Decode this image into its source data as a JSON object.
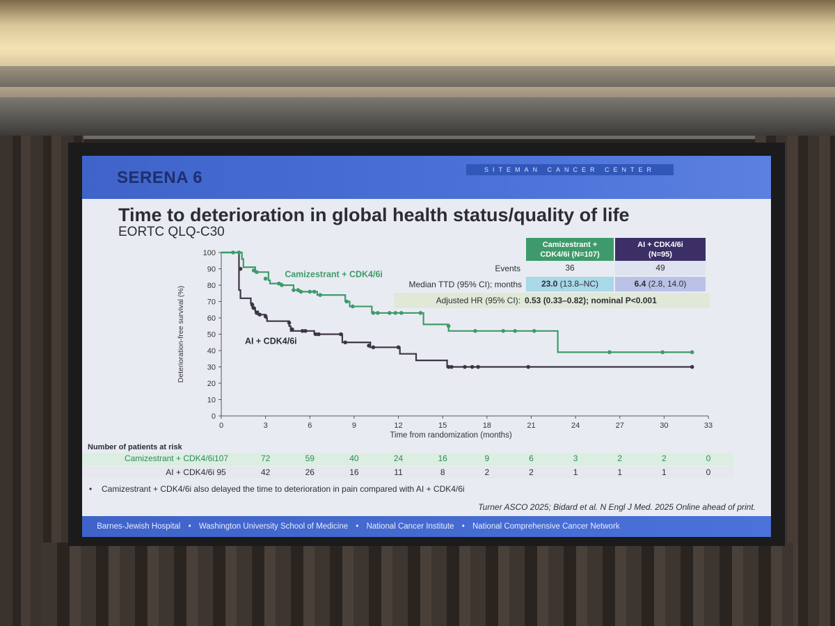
{
  "slide": {
    "banner_title": "SERENA 6",
    "center_tag": "SITEMAN CANCER CENTER",
    "title": "Time to deterioration in global health status/quality of life",
    "subtitle": "EORTC QLQ-C30"
  },
  "table": {
    "header_cam": "Camizestrant + CDK4/6i (N=107)",
    "header_ai": "AI + CDK4/6i (N=95)",
    "events_label": "Events",
    "events_cam": "36",
    "events_ai": "49",
    "median_label": "Median TTD (95% CI); months",
    "median_cam_bold": "23.0",
    "median_cam_ci": "(13.8–NC)",
    "median_ai_bold": "6.4",
    "median_ai_ci": "(2.8, 14.0)",
    "hr_label": "Adjusted HR (95% CI):",
    "hr_value": "0.53 (0.33–0.82); nominal P<0.001"
  },
  "chart_data": {
    "type": "line",
    "title": "",
    "xlabel": "Time from randomization (months)",
    "ylabel": "Deterioration-free survival (%)",
    "xlim": [
      0,
      33
    ],
    "ylim": [
      0,
      100
    ],
    "xticks": [
      0,
      3,
      6,
      9,
      12,
      15,
      18,
      21,
      24,
      27,
      30,
      33
    ],
    "yticks": [
      0,
      10,
      20,
      30,
      40,
      50,
      60,
      70,
      80,
      90,
      100
    ],
    "series": [
      {
        "name": "Camizestrant + CDK4/6i",
        "color": "#3e9a6a",
        "steps": [
          [
            0,
            100
          ],
          [
            1.3,
            100
          ],
          [
            1.4,
            96
          ],
          [
            1.5,
            91
          ],
          [
            2.2,
            91
          ],
          [
            2.3,
            88
          ],
          [
            3.1,
            88
          ],
          [
            3.2,
            83
          ],
          [
            3.3,
            81
          ],
          [
            4.0,
            81
          ],
          [
            4.1,
            80
          ],
          [
            4.8,
            80
          ],
          [
            4.9,
            77
          ],
          [
            5.2,
            77
          ],
          [
            5.3,
            76
          ],
          [
            6.4,
            76
          ],
          [
            6.5,
            74
          ],
          [
            8.3,
            74
          ],
          [
            8.4,
            70
          ],
          [
            8.6,
            70
          ],
          [
            8.7,
            67
          ],
          [
            10.1,
            67
          ],
          [
            10.2,
            63
          ],
          [
            13.6,
            63
          ],
          [
            13.7,
            56
          ],
          [
            15.3,
            56
          ],
          [
            15.4,
            52
          ],
          [
            22.7,
            52
          ],
          [
            22.8,
            39
          ],
          [
            31.9,
            39
          ]
        ],
        "censors": [
          [
            0.8,
            100
          ],
          [
            1.2,
            100
          ],
          [
            2.2,
            89
          ],
          [
            2.4,
            88
          ],
          [
            3.0,
            84
          ],
          [
            3.9,
            81
          ],
          [
            4.1,
            80
          ],
          [
            4.9,
            77
          ],
          [
            5.2,
            77
          ],
          [
            5.4,
            76
          ],
          [
            6.0,
            76
          ],
          [
            6.3,
            76
          ],
          [
            6.7,
            74
          ],
          [
            8.5,
            70
          ],
          [
            8.9,
            67
          ],
          [
            10.3,
            63
          ],
          [
            10.6,
            63
          ],
          [
            11.4,
            63
          ],
          [
            11.8,
            63
          ],
          [
            12.2,
            63
          ],
          [
            13.5,
            63
          ],
          [
            15.4,
            55
          ],
          [
            17.2,
            52
          ],
          [
            19.1,
            52
          ],
          [
            19.9,
            52
          ],
          [
            21.2,
            52
          ],
          [
            26.3,
            39
          ],
          [
            29.9,
            39
          ],
          [
            31.9,
            39
          ]
        ]
      },
      {
        "name": "AI + CDK4/6i",
        "color": "#3d3446",
        "steps": [
          [
            0,
            100
          ],
          [
            1.1,
            100
          ],
          [
            1.2,
            77
          ],
          [
            1.3,
            72
          ],
          [
            1.9,
            72
          ],
          [
            2.0,
            69
          ],
          [
            2.1,
            66
          ],
          [
            2.3,
            64
          ],
          [
            2.5,
            62
          ],
          [
            2.9,
            62
          ],
          [
            3.0,
            60
          ],
          [
            3.1,
            58
          ],
          [
            4.5,
            58
          ],
          [
            4.6,
            55
          ],
          [
            4.7,
            52
          ],
          [
            6.2,
            52
          ],
          [
            6.3,
            50
          ],
          [
            8.1,
            50
          ],
          [
            8.2,
            45
          ],
          [
            10.0,
            45
          ],
          [
            10.1,
            42
          ],
          [
            12.0,
            42
          ],
          [
            12.1,
            38
          ],
          [
            13.1,
            38
          ],
          [
            13.2,
            34
          ],
          [
            15.2,
            34
          ],
          [
            15.3,
            30
          ],
          [
            31.9,
            30
          ]
        ],
        "censors": [
          [
            1.3,
            90
          ],
          [
            2.1,
            68
          ],
          [
            2.2,
            66
          ],
          [
            2.4,
            63
          ],
          [
            2.6,
            62
          ],
          [
            3.0,
            61
          ],
          [
            4.6,
            57
          ],
          [
            4.8,
            53
          ],
          [
            5.5,
            52
          ],
          [
            5.7,
            52
          ],
          [
            6.4,
            50
          ],
          [
            6.6,
            50
          ],
          [
            8.1,
            50
          ],
          [
            8.4,
            45
          ],
          [
            10.0,
            43
          ],
          [
            10.3,
            42
          ],
          [
            12.0,
            42
          ],
          [
            15.4,
            30
          ],
          [
            15.6,
            30
          ],
          [
            16.5,
            30
          ],
          [
            17.0,
            30
          ],
          [
            17.4,
            30
          ],
          [
            20.8,
            30
          ],
          [
            31.9,
            30
          ]
        ]
      }
    ],
    "annotations": [
      {
        "text": "Camizestrant + CDK4/6i",
        "color": "#3e9a6a"
      },
      {
        "text": "AI + CDK4/6i",
        "color": "#2b2d33"
      }
    ]
  },
  "risk": {
    "title": "Number of patients at risk",
    "rows": [
      {
        "label": "Camizestrant + CDK4/6i",
        "values": [
          "107",
          "72",
          "59",
          "40",
          "24",
          "16",
          "9",
          "6",
          "3",
          "2",
          "2",
          "0"
        ]
      },
      {
        "label": "AI + CDK4/6i",
        "values": [
          "95",
          "42",
          "26",
          "16",
          "11",
          "8",
          "2",
          "2",
          "1",
          "1",
          "1",
          "0"
        ]
      }
    ]
  },
  "bullet": {
    "dot": "•",
    "text": "Camizestrant + CDK4/6i also delayed the time to deterioration in pain compared with AI + CDK4/6i"
  },
  "citation": "Turner ASCO 2025; Bidard et al. N Engl J Med. 2025 Online ahead of print.",
  "footer": {
    "items": [
      "Barnes-Jewish Hospital",
      "Washington University School of Medicine",
      "National Cancer Institute",
      "National Comprehensive Cancer Network"
    ],
    "separator": "•"
  }
}
